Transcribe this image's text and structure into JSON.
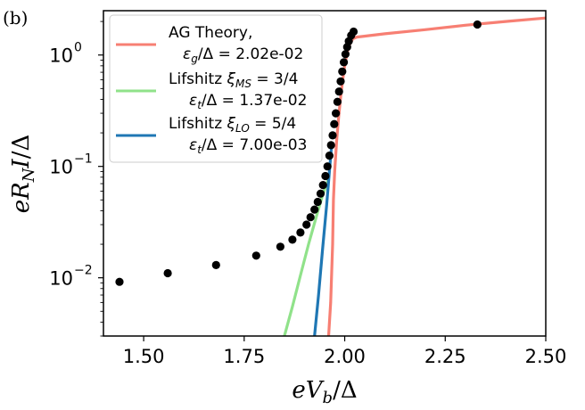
{
  "panel_label": "(b)",
  "chart_data": {
    "type": "line",
    "xlabel": "eV_b/Δ",
    "ylabel": "eR_N I/Δ",
    "xscale": "linear",
    "yscale": "log",
    "xlim": [
      1.4,
      2.5
    ],
    "ylim": [
      0.003,
      2.5
    ],
    "grid": false,
    "legend_position": "top-left",
    "x_ticks": [
      1.5,
      1.75,
      2.0,
      2.25,
      2.5
    ],
    "x_tick_labels": [
      "1.50",
      "1.75",
      "2.00",
      "2.25",
      "2.50"
    ],
    "y_ticks": [
      0.01,
      0.1,
      1
    ],
    "y_tick_labels": [
      {
        "base": "10",
        "exp": "−2"
      },
      {
        "base": "10",
        "exp": "−1"
      },
      {
        "base": "10",
        "exp": "0"
      }
    ],
    "data_points": {
      "name": "measured",
      "color": "#000000",
      "x": [
        1.44,
        1.56,
        1.68,
        1.78,
        1.84,
        1.87,
        1.89,
        1.905,
        1.915,
        1.925,
        1.933,
        1.94,
        1.946,
        1.952,
        1.957,
        1.962,
        1.966,
        1.97,
        1.974,
        1.978,
        1.982,
        1.986,
        1.99,
        1.994,
        1.998,
        2.002,
        2.006,
        2.01,
        2.016,
        2.022,
        2.33
      ],
      "y": [
        0.0092,
        0.011,
        0.013,
        0.0158,
        0.019,
        0.022,
        0.0255,
        0.03,
        0.035,
        0.041,
        0.048,
        0.057,
        0.068,
        0.082,
        0.1,
        0.125,
        0.155,
        0.19,
        0.24,
        0.3,
        0.38,
        0.47,
        0.58,
        0.71,
        0.86,
        1.02,
        1.18,
        1.33,
        1.5,
        1.62,
        1.88
      ]
    },
    "series": [
      {
        "name": "AG Theory",
        "legend": [
          "AG Theory,",
          "εg/Δ = 2.02e-02"
        ],
        "color": "#f77f73",
        "x": [
          1.96,
          1.965,
          1.97,
          1.972,
          1.975,
          1.98,
          1.985,
          1.99,
          1.995,
          2.0,
          2.005,
          2.01,
          2.02,
          2.03,
          2.1,
          2.2,
          2.3,
          2.4,
          2.5
        ],
        "y": [
          0.003,
          0.006,
          0.02,
          0.05,
          0.09,
          0.17,
          0.28,
          0.42,
          0.6,
          0.8,
          1.0,
          1.2,
          1.4,
          1.45,
          1.55,
          1.69,
          1.85,
          2.0,
          2.15
        ]
      },
      {
        "name": "Lifshitz MS",
        "legend": [
          "Lifshitz ξMS = 3/4",
          "εt/Δ = 1.37e-02"
        ],
        "color": "#90e28a",
        "x": [
          1.85,
          1.87,
          1.89,
          1.91,
          1.93,
          1.945,
          1.96
        ],
        "y": [
          0.003,
          0.0055,
          0.0105,
          0.02,
          0.036,
          0.055,
          0.078
        ]
      },
      {
        "name": "Lifshitz LO",
        "legend": [
          "Lifshitz ξLO = 5/4",
          "εt/Δ = 7.00e-03"
        ],
        "color": "#1f77b4",
        "x": [
          1.925,
          1.935,
          1.945,
          1.955,
          1.962,
          1.967
        ],
        "y": [
          0.003,
          0.007,
          0.018,
          0.045,
          0.09,
          0.15
        ]
      }
    ]
  }
}
